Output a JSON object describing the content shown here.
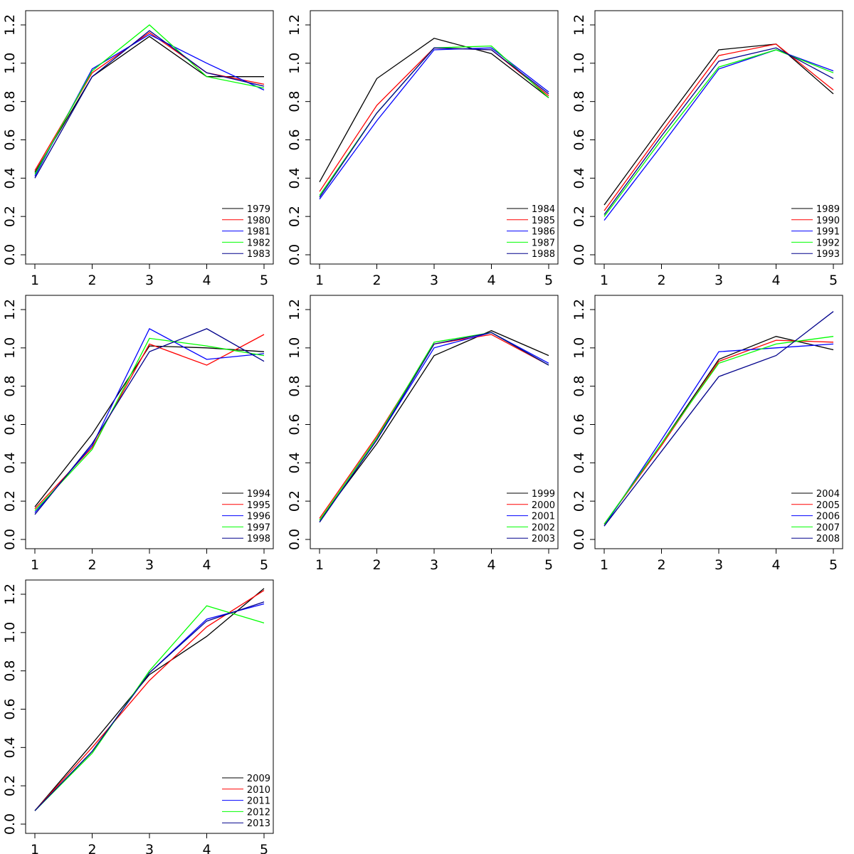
{
  "colors": {
    "black": "#000000",
    "red": "#ff0000",
    "blue": "#0000ff",
    "green": "#00ff00",
    "navy": "#00008b"
  },
  "chart_data": [
    {
      "type": "line",
      "x": [
        1,
        2,
        3,
        4,
        5
      ],
      "xlim": [
        1,
        5
      ],
      "ylim": [
        0,
        1.2
      ],
      "x_ticks": [
        "1",
        "2",
        "3",
        "4",
        "5"
      ],
      "y_ticks": [
        "0.0",
        "0.2",
        "0.4",
        "0.6",
        "0.8",
        "1.0",
        "1.2"
      ],
      "legend_position": "bottom-right",
      "series": [
        {
          "name": "1979",
          "color": "#000000",
          "values": [
            0.43,
            0.93,
            1.14,
            0.93,
            0.93
          ]
        },
        {
          "name": "1980",
          "color": "#ff0000",
          "values": [
            0.44,
            0.95,
            1.16,
            0.95,
            0.89
          ]
        },
        {
          "name": "1981",
          "color": "#0000ff",
          "values": [
            0.41,
            0.97,
            1.15,
            1.0,
            0.86
          ]
        },
        {
          "name": "1982",
          "color": "#00ff00",
          "values": [
            0.42,
            0.96,
            1.2,
            0.93,
            0.87
          ]
        },
        {
          "name": "1983",
          "color": "#00008b",
          "values": [
            0.4,
            0.93,
            1.17,
            0.95,
            0.88
          ]
        }
      ]
    },
    {
      "type": "line",
      "x": [
        1,
        2,
        3,
        4,
        5
      ],
      "xlim": [
        1,
        5
      ],
      "ylim": [
        0,
        1.2
      ],
      "x_ticks": [
        "1",
        "2",
        "3",
        "4",
        "5"
      ],
      "y_ticks": [
        "0.0",
        "0.2",
        "0.4",
        "0.6",
        "0.8",
        "1.0",
        "1.2"
      ],
      "legend_position": "bottom-right",
      "series": [
        {
          "name": "1984",
          "color": "#000000",
          "values": [
            0.38,
            0.92,
            1.13,
            1.05,
            0.82
          ]
        },
        {
          "name": "1985",
          "color": "#ff0000",
          "values": [
            0.33,
            0.78,
            1.08,
            1.07,
            0.83
          ]
        },
        {
          "name": "1986",
          "color": "#0000ff",
          "values": [
            0.29,
            0.7,
            1.07,
            1.08,
            0.85
          ]
        },
        {
          "name": "1987",
          "color": "#00ff00",
          "values": [
            0.31,
            0.74,
            1.08,
            1.09,
            0.82
          ]
        },
        {
          "name": "1988",
          "color": "#00008b",
          "values": [
            0.3,
            0.74,
            1.08,
            1.07,
            0.84
          ]
        }
      ]
    },
    {
      "type": "line",
      "x": [
        1,
        2,
        3,
        4,
        5
      ],
      "xlim": [
        1,
        5
      ],
      "ylim": [
        0,
        1.2
      ],
      "x_ticks": [
        "1",
        "2",
        "3",
        "4",
        "5"
      ],
      "y_ticks": [
        "0.0",
        "0.2",
        "0.4",
        "0.6",
        "0.8",
        "1.0",
        "1.2"
      ],
      "legend_position": "bottom-right",
      "series": [
        {
          "name": "1989",
          "color": "#000000",
          "values": [
            0.26,
            0.67,
            1.07,
            1.1,
            0.84
          ]
        },
        {
          "name": "1990",
          "color": "#ff0000",
          "values": [
            0.23,
            0.64,
            1.04,
            1.1,
            0.86
          ]
        },
        {
          "name": "1991",
          "color": "#0000ff",
          "values": [
            0.18,
            0.57,
            0.97,
            1.07,
            0.96
          ]
        },
        {
          "name": "1992",
          "color": "#00ff00",
          "values": [
            0.2,
            0.6,
            0.98,
            1.07,
            0.95
          ]
        },
        {
          "name": "1993",
          "color": "#00008b",
          "values": [
            0.21,
            0.62,
            1.01,
            1.08,
            0.92
          ]
        }
      ]
    },
    {
      "type": "line",
      "x": [
        1,
        2,
        3,
        4,
        5
      ],
      "xlim": [
        1,
        5
      ],
      "ylim": [
        0,
        1.2
      ],
      "x_ticks": [
        "1",
        "2",
        "3",
        "4",
        "5"
      ],
      "y_ticks": [
        "0.0",
        "0.2",
        "0.4",
        "0.6",
        "0.8",
        "1.0",
        "1.2"
      ],
      "legend_position": "bottom-right",
      "series": [
        {
          "name": "1994",
          "color": "#000000",
          "values": [
            0.17,
            0.55,
            1.01,
            1.0,
            0.98
          ]
        },
        {
          "name": "1995",
          "color": "#ff0000",
          "values": [
            0.16,
            0.48,
            1.02,
            0.91,
            1.07
          ]
        },
        {
          "name": "1996",
          "color": "#0000ff",
          "values": [
            0.14,
            0.49,
            1.1,
            0.94,
            0.97
          ]
        },
        {
          "name": "1997",
          "color": "#00ff00",
          "values": [
            0.15,
            0.47,
            1.05,
            1.01,
            0.96
          ]
        },
        {
          "name": "1998",
          "color": "#00008b",
          "values": [
            0.13,
            0.5,
            0.98,
            1.1,
            0.93
          ]
        }
      ]
    },
    {
      "type": "line",
      "x": [
        1,
        2,
        3,
        4,
        5
      ],
      "xlim": [
        1,
        5
      ],
      "ylim": [
        0,
        1.2
      ],
      "x_ticks": [
        "1",
        "2",
        "3",
        "4",
        "5"
      ],
      "y_ticks": [
        "0.0",
        "0.2",
        "0.4",
        "0.6",
        "0.8",
        "1.0",
        "1.2"
      ],
      "legend_position": "bottom-right",
      "series": [
        {
          "name": "1999",
          "color": "#000000",
          "values": [
            0.1,
            0.5,
            0.96,
            1.09,
            0.96
          ]
        },
        {
          "name": "2000",
          "color": "#ff0000",
          "values": [
            0.11,
            0.54,
            1.02,
            1.07,
            0.91
          ]
        },
        {
          "name": "2001",
          "color": "#0000ff",
          "values": [
            0.09,
            0.52,
            1.0,
            1.08,
            0.92
          ]
        },
        {
          "name": "2002",
          "color": "#00ff00",
          "values": [
            0.1,
            0.53,
            1.03,
            1.08,
            0.91
          ]
        },
        {
          "name": "2003",
          "color": "#00008b",
          "values": [
            0.09,
            0.52,
            1.02,
            1.08,
            0.91
          ]
        }
      ]
    },
    {
      "type": "line",
      "x": [
        1,
        2,
        3,
        4,
        5
      ],
      "xlim": [
        1,
        5
      ],
      "ylim": [
        0,
        1.2
      ],
      "x_ticks": [
        "1",
        "2",
        "3",
        "4",
        "5"
      ],
      "y_ticks": [
        "0.0",
        "0.2",
        "0.4",
        "0.6",
        "0.8",
        "1.0",
        "1.2"
      ],
      "legend_position": "bottom-right",
      "series": [
        {
          "name": "2004",
          "color": "#000000",
          "values": [
            0.08,
            0.5,
            0.94,
            1.06,
            0.99
          ]
        },
        {
          "name": "2005",
          "color": "#ff0000",
          "values": [
            0.08,
            0.49,
            0.93,
            1.04,
            1.03
          ]
        },
        {
          "name": "2006",
          "color": "#0000ff",
          "values": [
            0.07,
            0.52,
            0.98,
            1.0,
            1.02
          ]
        },
        {
          "name": "2007",
          "color": "#00ff00",
          "values": [
            0.08,
            0.5,
            0.92,
            1.02,
            1.06
          ]
        },
        {
          "name": "2008",
          "color": "#00008b",
          "values": [
            0.07,
            0.46,
            0.85,
            0.96,
            1.19
          ]
        }
      ]
    },
    {
      "type": "line",
      "x": [
        1,
        2,
        3,
        4,
        5
      ],
      "xlim": [
        1,
        5
      ],
      "ylim": [
        0,
        1.2
      ],
      "x_ticks": [
        "1",
        "2",
        "3",
        "4",
        "5"
      ],
      "y_ticks": [
        "0.0",
        "0.2",
        "0.4",
        "0.6",
        "0.8",
        "1.0",
        "1.2"
      ],
      "legend_position": "bottom-right",
      "series": [
        {
          "name": "2009",
          "color": "#000000",
          "values": [
            0.07,
            0.42,
            0.78,
            0.98,
            1.23
          ]
        },
        {
          "name": "2010",
          "color": "#ff0000",
          "values": [
            0.07,
            0.4,
            0.75,
            1.03,
            1.22
          ]
        },
        {
          "name": "2011",
          "color": "#0000ff",
          "values": [
            0.07,
            0.38,
            0.79,
            1.07,
            1.15
          ]
        },
        {
          "name": "2012",
          "color": "#00ff00",
          "values": [
            0.07,
            0.37,
            0.8,
            1.14,
            1.05
          ]
        },
        {
          "name": "2013",
          "color": "#00008b",
          "values": [
            0.07,
            0.38,
            0.79,
            1.06,
            1.16
          ]
        }
      ]
    }
  ]
}
